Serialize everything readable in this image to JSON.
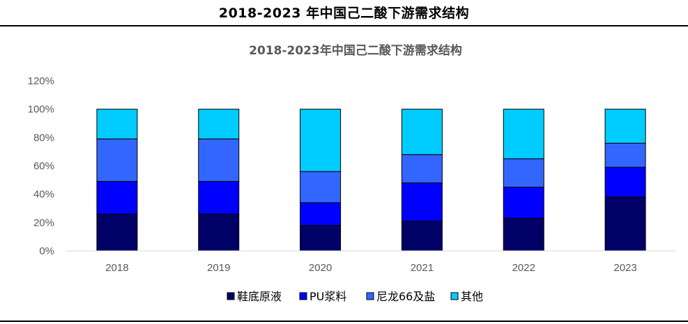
{
  "document": {
    "title": "2018-2023 年中国己二酸下游需求结构"
  },
  "chart_data": {
    "type": "bar",
    "stacked": true,
    "title": "2018-2023年中国己二酸下游需求结构",
    "xlabel": "",
    "ylabel": "",
    "categories": [
      "2018",
      "2019",
      "2020",
      "2021",
      "2022",
      "2023"
    ],
    "y_ticks": [
      "0%",
      "20%",
      "40%",
      "60%",
      "80%",
      "100%",
      "120%"
    ],
    "ylim": [
      0,
      120
    ],
    "grid": false,
    "legend_position": "bottom",
    "series": [
      {
        "name": "鞋底原液",
        "color": "#000066",
        "values": [
          26,
          26,
          18,
          21,
          23,
          38
        ]
      },
      {
        "name": "PU浆料",
        "color": "#0000FF",
        "values": [
          23,
          23,
          16,
          27,
          22,
          21
        ]
      },
      {
        "name": "尼龙66及盐",
        "color": "#3366FF",
        "values": [
          30,
          30,
          22,
          20,
          20,
          17
        ]
      },
      {
        "name": "其他",
        "color": "#00CCFF",
        "values": [
          21,
          21,
          44,
          32,
          35,
          24
        ]
      }
    ]
  }
}
